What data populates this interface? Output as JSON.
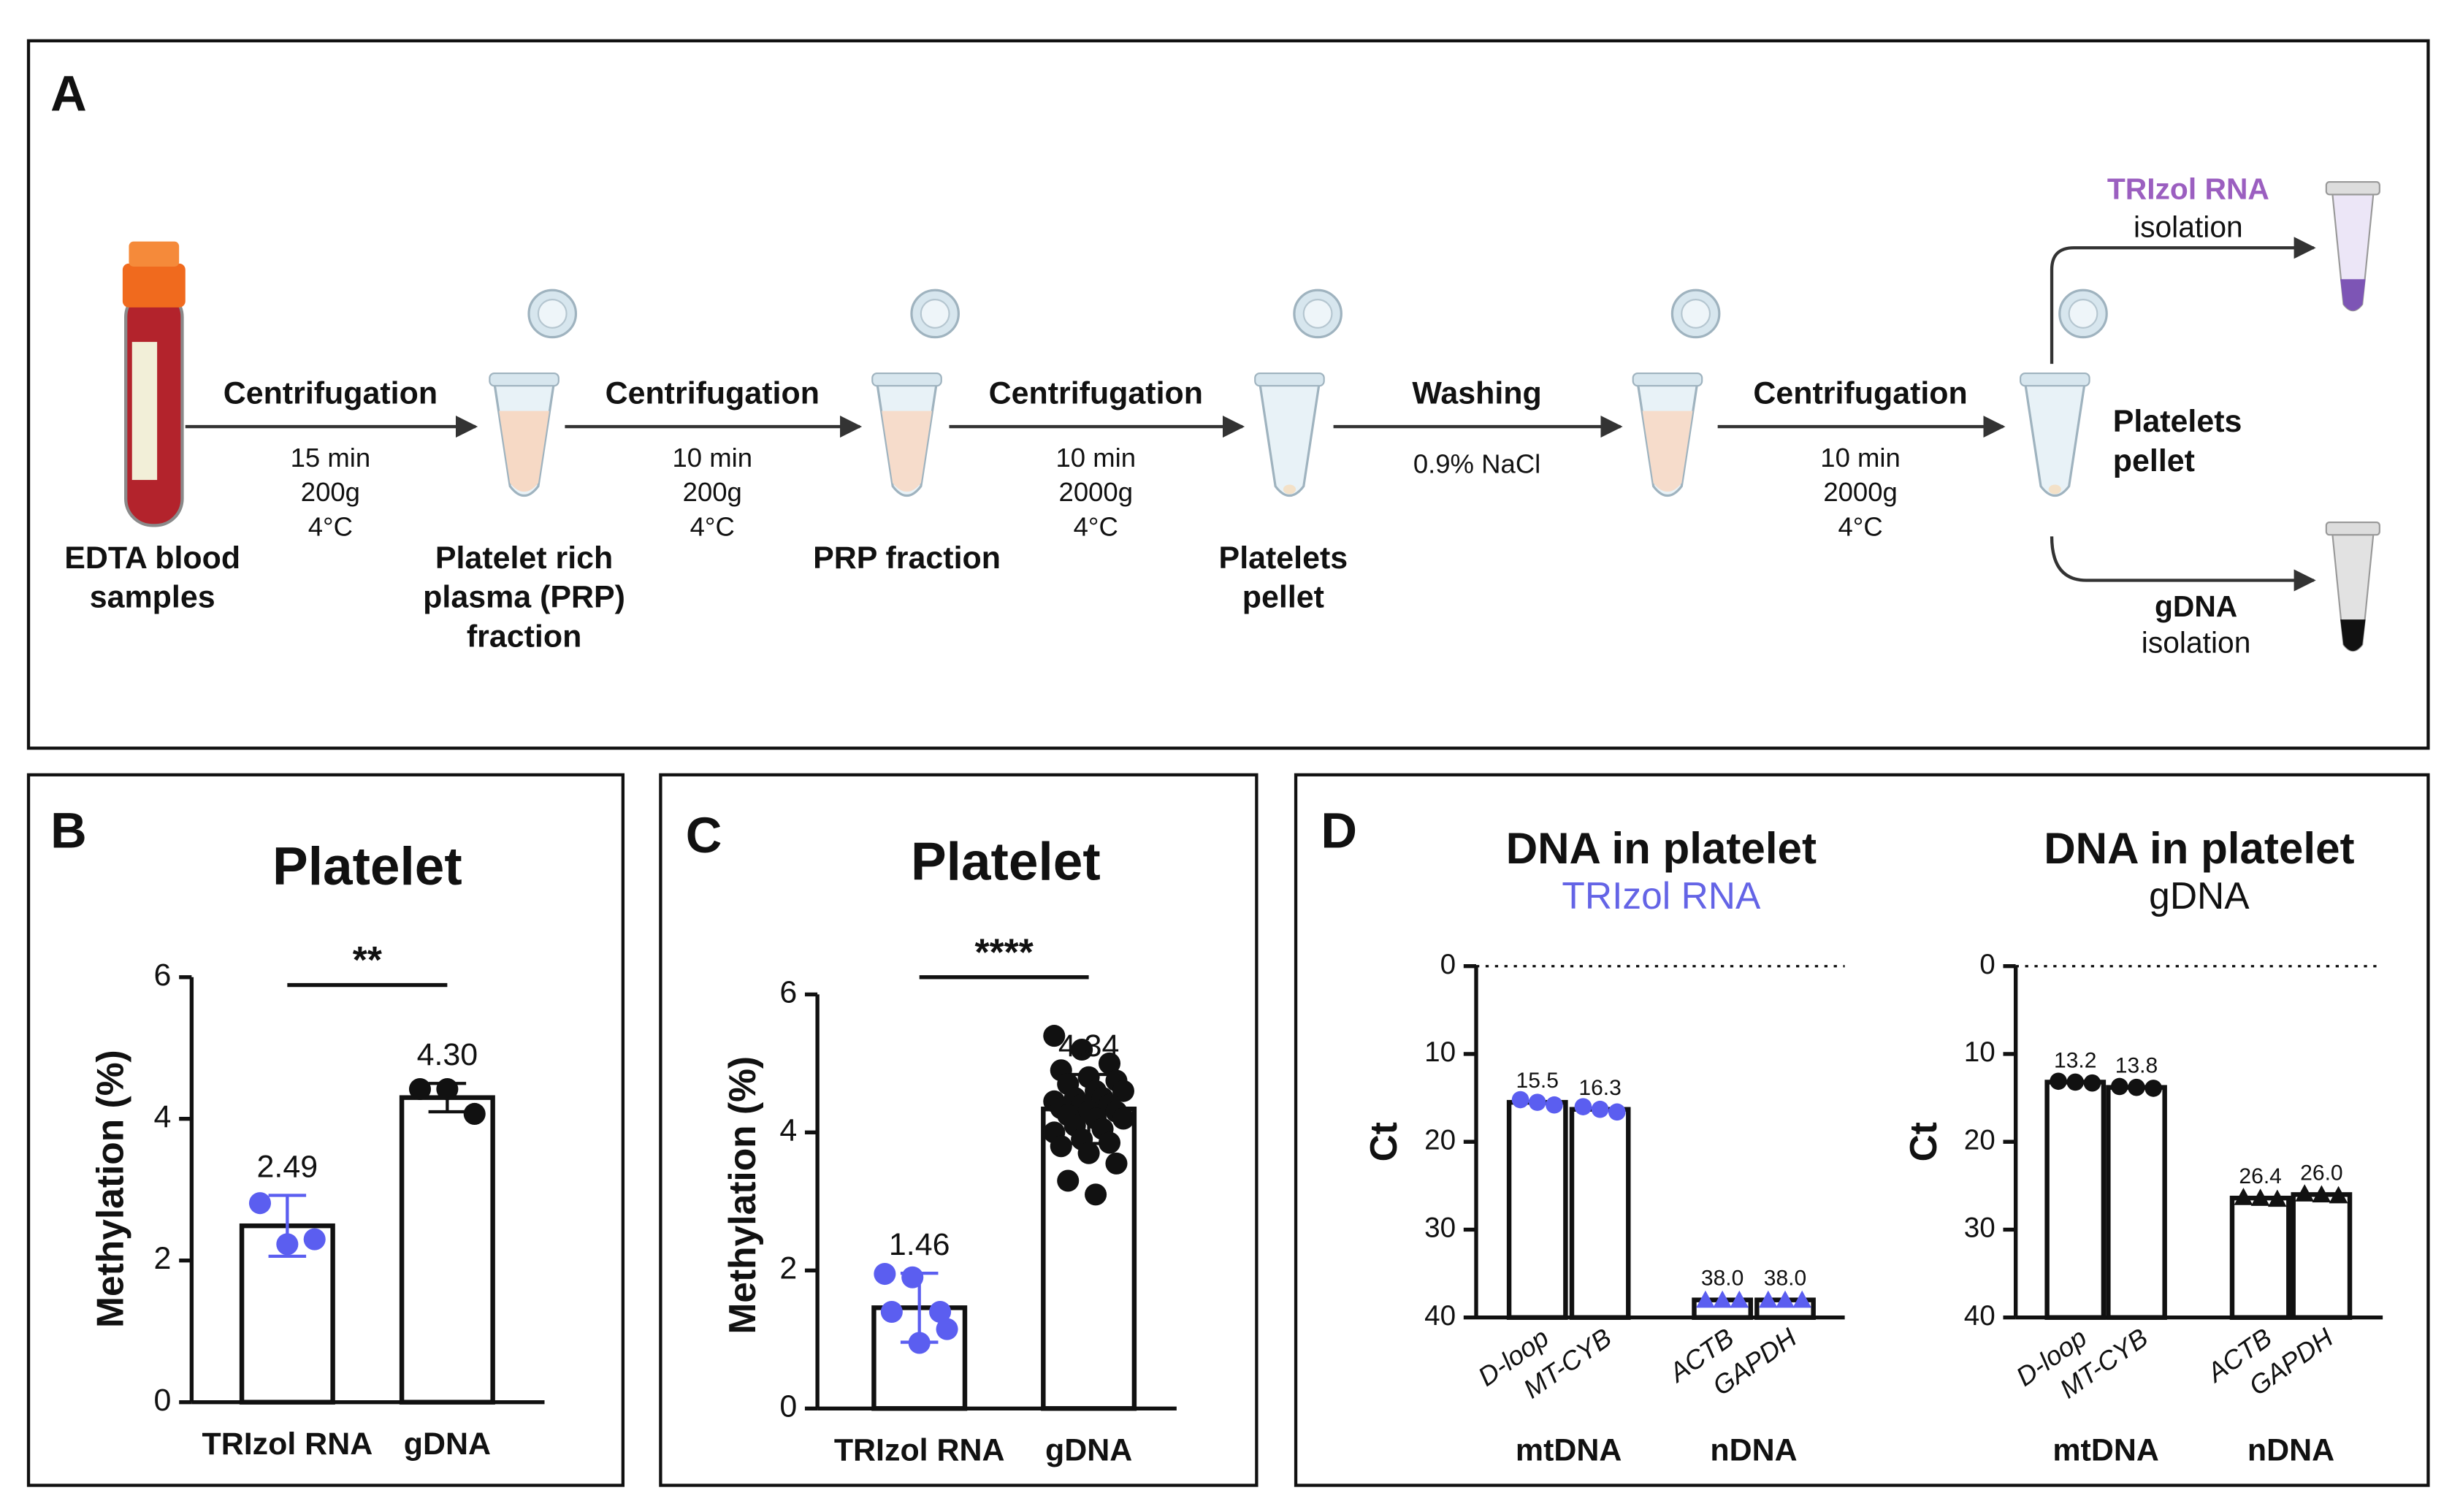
{
  "panel_a": {
    "label": "A",
    "samples": [
      "EDTA blood",
      "samples"
    ],
    "steps": [
      {
        "title": "Centrifugation",
        "details": [
          "15 min",
          "200g",
          "4°C"
        ]
      },
      {
        "title": "Centrifugation",
        "details": [
          "10 min",
          "200g",
          "4°C"
        ]
      },
      {
        "title": "Centrifugation",
        "details": [
          "10 min",
          "2000g",
          "4°C"
        ]
      },
      {
        "title": "Washing",
        "details": [
          "0.9% NaCl"
        ]
      },
      {
        "title": "Centrifugation",
        "details": [
          "10 min",
          "2000g",
          "4°C"
        ]
      }
    ],
    "fractions": [
      [
        "Platelet rich",
        "plasma (PRP)",
        "fraction"
      ],
      [
        "PRP fraction"
      ],
      [
        "Platelets",
        "pellet"
      ]
    ],
    "final": [
      "Platelets",
      "pellet"
    ],
    "branches": [
      {
        "name": "TRIzol RNA",
        "color": "#9b5fc0",
        "text": "isolation"
      },
      {
        "name": "gDNA",
        "color": "#111111",
        "text": "isolation"
      }
    ]
  },
  "chart_data": [
    {
      "type": "bar",
      "panel": "B",
      "title": "Platelet",
      "ylabel": "Methylation (%)",
      "categories": [
        "TRIzol RNA",
        "gDNA"
      ],
      "values": [
        2.49,
        4.3
      ],
      "value_labels": [
        "2.49",
        "4.30"
      ],
      "errors": [
        0.43,
        0.2
      ],
      "points": [
        [
          2.81,
          2.23,
          2.3
        ],
        [
          4.42,
          4.42,
          4.07
        ]
      ],
      "point_colors": [
        "#5b5ef0",
        "#111111"
      ],
      "markers": [
        "circle",
        "circle"
      ],
      "significance": "**",
      "ylim": [
        0,
        6
      ],
      "yticks": [
        0,
        2,
        4,
        6
      ]
    },
    {
      "type": "bar",
      "panel": "C",
      "title": "Platelet",
      "ylabel": "Methylation (%)",
      "categories": [
        "TRIzol RNA",
        "gDNA"
      ],
      "values": [
        1.46,
        4.34
      ],
      "value_labels": [
        "1.46",
        "4.34"
      ],
      "errors": [
        0.5,
        0.5
      ],
      "points": [
        [
          1.95,
          1.9,
          1.4,
          1.4,
          0.95,
          1.15
        ],
        [
          5.4,
          5.2,
          5.0,
          4.9,
          4.8,
          4.75,
          4.7,
          4.6,
          4.6,
          4.5,
          4.5,
          4.45,
          4.4,
          4.4,
          4.35,
          4.3,
          4.3,
          4.25,
          4.2,
          4.2,
          4.1,
          4.05,
          4.0,
          3.9,
          3.85,
          3.8,
          3.7,
          3.55,
          3.3,
          3.1
        ]
      ],
      "point_colors": [
        "#5b5ef0",
        "#111111"
      ],
      "markers": [
        "circle",
        "circle"
      ],
      "significance": "****",
      "ylim": [
        0,
        6
      ],
      "yticks": [
        0,
        2,
        4,
        6
      ]
    },
    {
      "type": "bar",
      "panel": "D",
      "title": "DNA in platelet",
      "subtitle": "TRIzol RNA",
      "subtitle_color": "#6464e6",
      "ylabel": "Ct",
      "categories": [
        "D-loop",
        "MT-CYB",
        "ACTB",
        "GAPDH"
      ],
      "values": [
        15.5,
        16.3,
        38.0,
        38.0
      ],
      "value_labels": [
        "15.5",
        "16.3",
        "38.0",
        "38.0"
      ],
      "points": [
        [
          15.2,
          15.5,
          15.8
        ],
        [
          16.0,
          16.3,
          16.6
        ],
        [
          38.0,
          38.0,
          38.0
        ],
        [
          38.0,
          38.0,
          38.0
        ]
      ],
      "point_colors": [
        "#5b5ef0",
        "#5b5ef0",
        "#5b5ef0",
        "#5b5ef0"
      ],
      "markers": [
        "circle",
        "circle",
        "triangle",
        "triangle"
      ],
      "group_labels": [
        "mtDNA",
        "nDNA"
      ],
      "groups": [
        0,
        0,
        1,
        1
      ],
      "italic_categories": true,
      "zero_line": true,
      "ylim": [
        40,
        0
      ],
      "yticks": [
        0,
        10,
        20,
        30,
        40
      ]
    },
    {
      "type": "bar",
      "title": "DNA in platelet",
      "subtitle": "gDNA",
      "subtitle_color": "#111111",
      "ylabel": "Ct",
      "categories": [
        "D-loop",
        "MT-CYB",
        "ACTB",
        "GAPDH"
      ],
      "values": [
        13.2,
        13.8,
        26.4,
        26.0
      ],
      "value_labels": [
        "13.2",
        "13.8",
        "26.4",
        "26.0"
      ],
      "points": [
        [
          13.1,
          13.2,
          13.3
        ],
        [
          13.7,
          13.8,
          13.9
        ],
        [
          26.3,
          26.4,
          26.5
        ],
        [
          25.9,
          26.0,
          26.1
        ]
      ],
      "point_colors": [
        "#111111",
        "#111111",
        "#111111",
        "#111111"
      ],
      "markers": [
        "circle",
        "circle",
        "triangle",
        "triangle"
      ],
      "group_labels": [
        "mtDNA",
        "nDNA"
      ],
      "groups": [
        0,
        0,
        1,
        1
      ],
      "italic_categories": true,
      "zero_line": true,
      "ylim": [
        40,
        0
      ],
      "yticks": [
        0,
        10,
        20,
        30,
        40
      ]
    }
  ]
}
